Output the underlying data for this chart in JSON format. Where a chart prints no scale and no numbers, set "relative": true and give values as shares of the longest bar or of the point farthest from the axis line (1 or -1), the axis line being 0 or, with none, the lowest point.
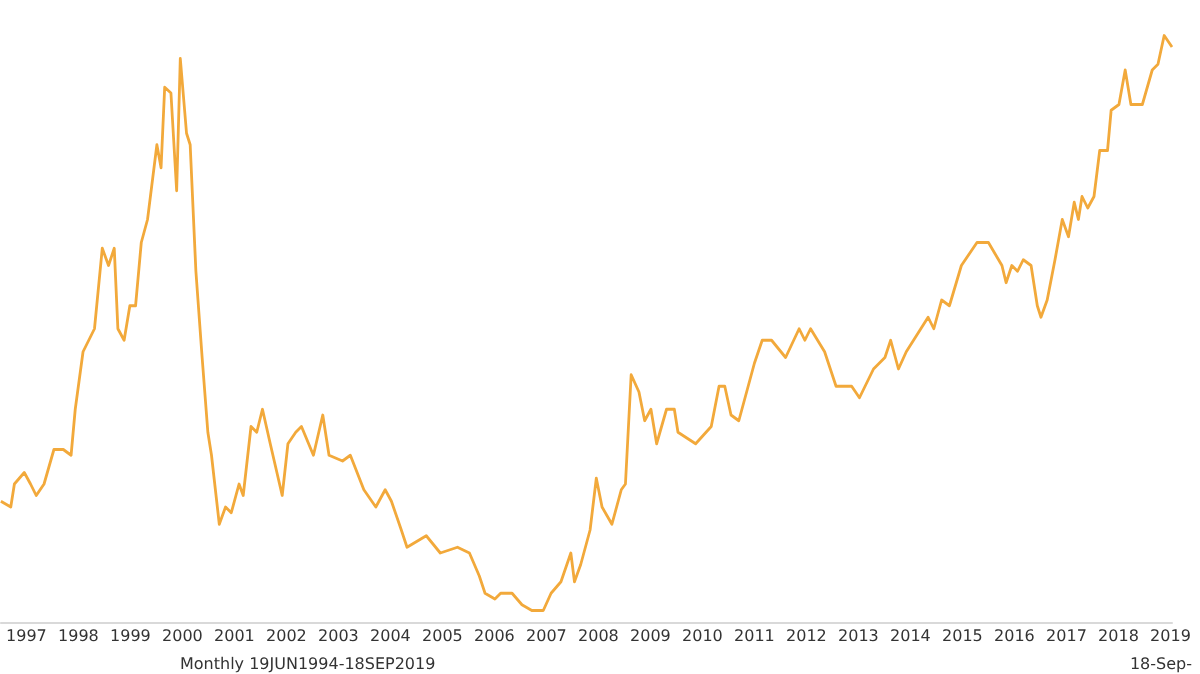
{
  "chart_data": {
    "type": "line",
    "relative": true,
    "color": "#f2a93b",
    "marker": "none",
    "grid": false,
    "xlim": [
      1996.51,
      2019.03
    ],
    "xticks": [
      1997,
      1998,
      1999,
      2000,
      2001,
      2002,
      2003,
      2004,
      2005,
      2006,
      2007,
      2008,
      2009,
      2010,
      2011,
      2012,
      2013,
      2014,
      2015,
      2016,
      2017,
      2018,
      2019
    ],
    "x": [
      1996.51,
      1996.7,
      1996.77,
      1996.96,
      1997.08,
      1997.19,
      1997.34,
      1997.53,
      1997.71,
      1997.86,
      1997.94,
      1998.09,
      1998.31,
      1998.46,
      1998.58,
      1998.69,
      1998.76,
      1998.88,
      1998.99,
      1999.1,
      1999.21,
      1999.33,
      1999.51,
      1999.59,
      1999.66,
      1999.78,
      1999.89,
      1999.96,
      2000.08,
      2000.15,
      2000.26,
      2000.38,
      2000.49,
      2000.56,
      2000.71,
      2000.83,
      2000.94,
      2001.09,
      2001.17,
      2001.32,
      2001.43,
      2001.54,
      2001.69,
      2001.92,
      2002.03,
      2002.18,
      2002.29,
      2002.52,
      2002.7,
      2002.82,
      2003.08,
      2003.23,
      2003.49,
      2003.72,
      2003.9,
      2004.02,
      2004.21,
      2004.32,
      2004.69,
      2004.96,
      2005.29,
      2005.52,
      2005.71,
      2005.82,
      2006.01,
      2006.12,
      2006.34,
      2006.53,
      2006.72,
      2006.94,
      2007.09,
      2007.28,
      2007.47,
      2007.54,
      2007.66,
      2007.84,
      2007.96,
      2008.07,
      2008.26,
      2008.44,
      2008.52,
      2008.63,
      2008.78,
      2008.89,
      2009.01,
      2009.12,
      2009.31,
      2009.46,
      2009.53,
      2009.87,
      2010.17,
      2010.32,
      2010.43,
      2010.55,
      2010.7,
      2011.0,
      2011.15,
      2011.33,
      2011.6,
      2011.86,
      2011.97,
      2012.08,
      2012.35,
      2012.57,
      2012.87,
      2013.02,
      2013.29,
      2013.51,
      2013.62,
      2013.77,
      2013.92,
      2014.34,
      2014.45,
      2014.6,
      2014.75,
      2014.98,
      2015.28,
      2015.5,
      2015.76,
      2015.84,
      2015.95,
      2016.06,
      2016.17,
      2016.32,
      2016.44,
      2016.51,
      2016.63,
      2016.78,
      2016.92,
      2017.04,
      2017.15,
      2017.23,
      2017.3,
      2017.41,
      2017.53,
      2017.64,
      2017.79,
      2017.86,
      2018.01,
      2018.13,
      2018.24,
      2018.39,
      2018.46,
      2018.65,
      2018.76,
      2018.88,
      2019.03
    ],
    "values": [
      0.19,
      0.18,
      0.22,
      0.24,
      0.22,
      0.2,
      0.22,
      0.28,
      0.28,
      0.27,
      0.35,
      0.45,
      0.49,
      0.63,
      0.6,
      0.63,
      0.49,
      0.47,
      0.53,
      0.53,
      0.64,
      0.68,
      0.81,
      0.77,
      0.91,
      0.9,
      0.73,
      0.96,
      0.83,
      0.81,
      0.59,
      0.44,
      0.31,
      0.27,
      0.15,
      0.18,
      0.17,
      0.22,
      0.2,
      0.32,
      0.31,
      0.35,
      0.29,
      0.2,
      0.29,
      0.31,
      0.32,
      0.27,
      0.34,
      0.27,
      0.26,
      0.27,
      0.21,
      0.18,
      0.21,
      0.19,
      0.14,
      0.11,
      0.13,
      0.1,
      0.11,
      0.1,
      0.06,
      0.03,
      0.02,
      0.03,
      0.03,
      0.01,
      0,
      0.0,
      0.03,
      0.05,
      0.1,
      0.05,
      0.08,
      0.14,
      0.23,
      0.18,
      0.15,
      0.21,
      0.22,
      0.41,
      0.38,
      0.33,
      0.35,
      0.29,
      0.35,
      0.35,
      0.31,
      0.29,
      0.32,
      0.39,
      0.39,
      0.34,
      0.33,
      0.43,
      0.47,
      0.47,
      0.44,
      0.49,
      0.47,
      0.49,
      0.45,
      0.39,
      0.39,
      0.37,
      0.42,
      0.44,
      0.47,
      0.42,
      0.45,
      0.51,
      0.49,
      0.54,
      0.53,
      0.6,
      0.64,
      0.64,
      0.6,
      0.57,
      0.6,
      0.59,
      0.61,
      0.6,
      0.53,
      0.51,
      0.54,
      0.61,
      0.68,
      0.65,
      0.71,
      0.68,
      0.72,
      0.7,
      0.72,
      0.8,
      0.8,
      0.87,
      0.88,
      0.94,
      0.88,
      0.88,
      0.88,
      0.94,
      0.95,
      1,
      0.98
    ],
    "annotations": [
      "Monthly 19JUN1994-18SEP2019",
      "18-Sep-"
    ]
  }
}
